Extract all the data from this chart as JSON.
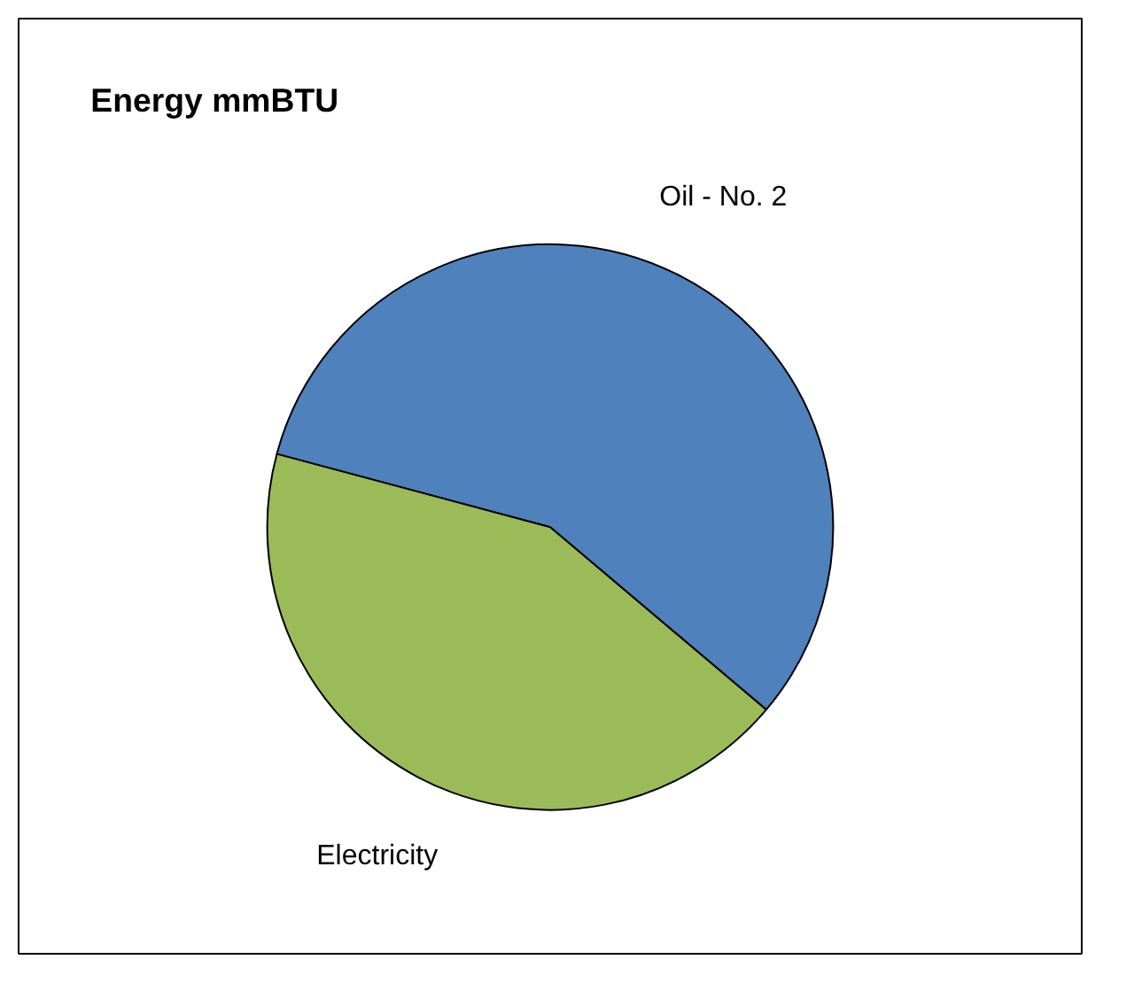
{
  "chart_data": {
    "type": "pie",
    "title": "Energy    mmBTU",
    "categories": [
      "Oil - No. 2",
      "Electricity"
    ],
    "values": [
      57,
      43
    ],
    "colors": [
      "#4f81bd",
      "#9bbb59"
    ]
  }
}
